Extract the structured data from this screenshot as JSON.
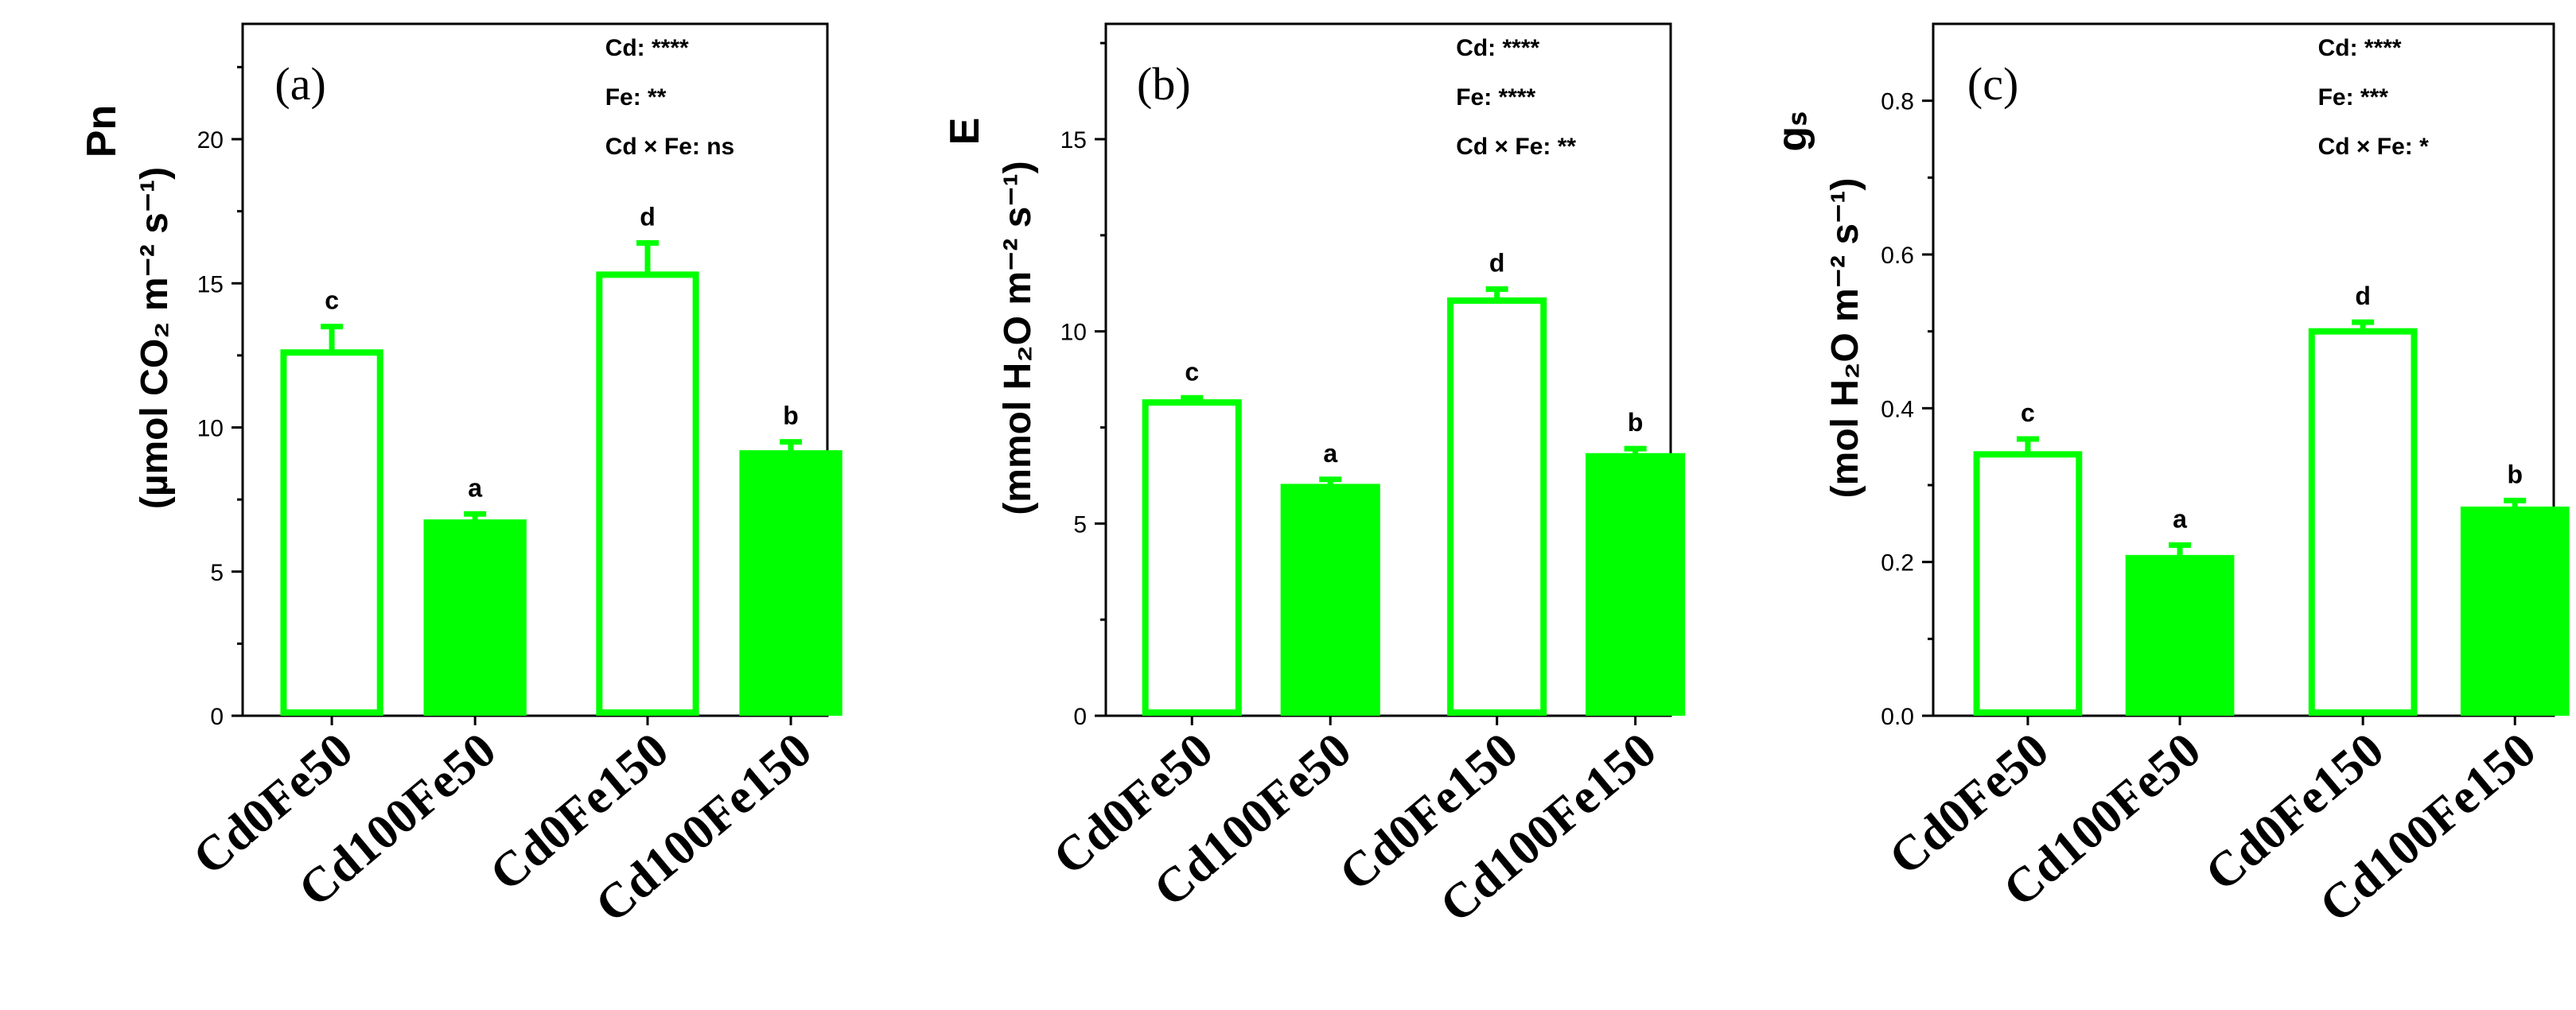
{
  "chart_data": [
    {
      "type": "bar",
      "panel_label": "(a)",
      "categories": [
        "Cd0Fe50",
        "Cd100Fe50",
        "Cd0Fe150",
        "Cd100Fe150"
      ],
      "values": [
        12.6,
        6.7,
        15.3,
        9.1
      ],
      "errors": [
        0.9,
        0.3,
        1.1,
        0.4
      ],
      "letters": [
        "c",
        "a",
        "d",
        "b"
      ],
      "ylim": [
        0,
        24
      ],
      "yticks": [
        0,
        5,
        10,
        15,
        20
      ],
      "ytick_labels": [
        "0",
        "5",
        "10",
        "15",
        "20"
      ],
      "ylabel_top": "Pn",
      "ylabel_unit": "(µmol CO₂ m⁻² s⁻¹)",
      "stats": [
        "Cd: ****",
        "Fe: **",
        "Cd × Fe: ns"
      ]
    },
    {
      "type": "bar",
      "panel_label": "(b)",
      "categories": [
        "Cd0Fe50",
        "Cd100Fe50",
        "Cd0Fe150",
        "Cd100Fe150"
      ],
      "values": [
        8.15,
        5.95,
        10.8,
        6.75
      ],
      "errors": [
        0.12,
        0.2,
        0.3,
        0.2
      ],
      "letters": [
        "c",
        "a",
        "d",
        "b"
      ],
      "ylim": [
        0,
        18
      ],
      "yticks": [
        0,
        5,
        10,
        15
      ],
      "ytick_labels": [
        "0",
        "5",
        "10",
        "15"
      ],
      "ylabel_top": "E",
      "ylabel_unit": "(mmol H₂O m⁻² s⁻¹)",
      "stats": [
        "Cd: ****",
        "Fe: ****",
        "Cd × Fe: **"
      ]
    },
    {
      "type": "bar",
      "panel_label": "(c)",
      "categories": [
        "Cd0Fe50",
        "Cd100Fe50",
        "Cd0Fe150",
        "Cd100Fe150"
      ],
      "values": [
        0.34,
        0.205,
        0.5,
        0.268
      ],
      "errors": [
        0.02,
        0.017,
        0.012,
        0.012
      ],
      "letters": [
        "c",
        "a",
        "d",
        "b"
      ],
      "ylim": [
        0,
        0.9
      ],
      "yticks": [
        0,
        0.2,
        0.4,
        0.6,
        0.8
      ],
      "ytick_labels": [
        "0.0",
        "0.2",
        "0.4",
        "0.6",
        "0.8"
      ],
      "ylabel_top": "gₛ",
      "ylabel_unit": "(mol H₂O m⁻² s⁻¹)",
      "stats": [
        "Cd: ****",
        "Fe: ***",
        "Cd × Fe: *"
      ]
    }
  ],
  "colors": {
    "bar": "#00ff00",
    "axis": "#000000"
  }
}
